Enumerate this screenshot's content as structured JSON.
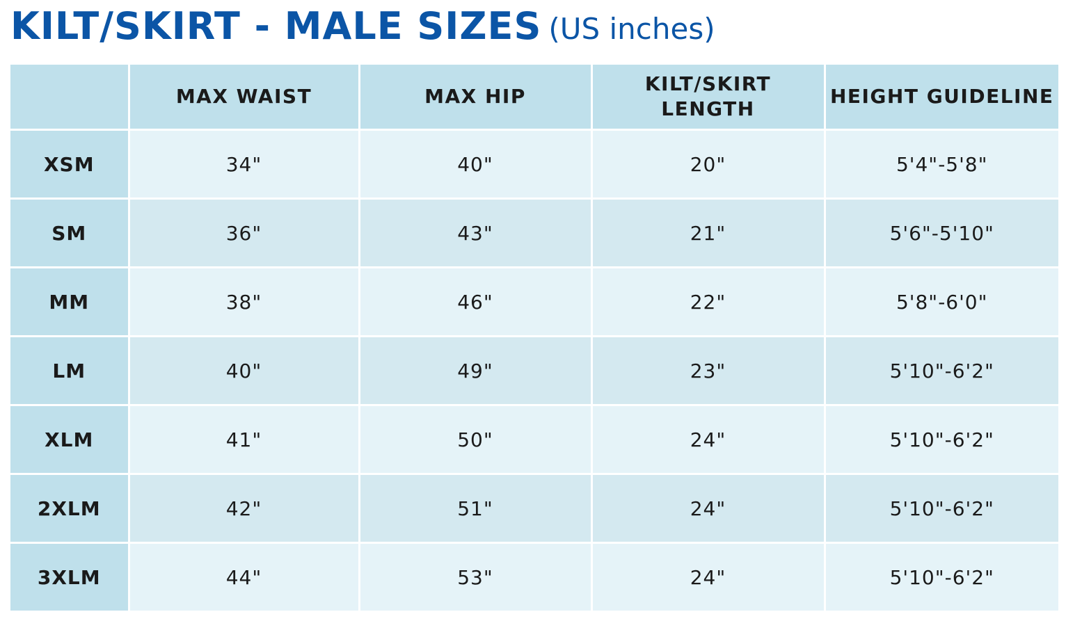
{
  "header": {
    "title": "KILT/SKIRT - MALE SIZES",
    "subtitle": "(US inches)"
  },
  "colors": {
    "title": "#0b55a6",
    "header_cell": "#bfe0eb",
    "row_light": "#e5f3f8",
    "row_dark": "#d4e9f0"
  },
  "table": {
    "columns": [
      "",
      "MAX WAIST",
      "MAX HIP",
      "KILT/SKIRT LENGTH",
      "HEIGHT GUIDELINE"
    ],
    "rows": [
      {
        "size": "XSM",
        "waist": "34\"",
        "hip": "40\"",
        "length": "20\"",
        "height": "5'4\"-5'8\""
      },
      {
        "size": "SM",
        "waist": "36\"",
        "hip": "43\"",
        "length": "21\"",
        "height": "5'6\"-5'10\""
      },
      {
        "size": "MM",
        "waist": "38\"",
        "hip": "46\"",
        "length": "22\"",
        "height": "5'8\"-6'0\""
      },
      {
        "size": "LM",
        "waist": "40\"",
        "hip": "49\"",
        "length": "23\"",
        "height": "5'10\"-6'2\""
      },
      {
        "size": "XLM",
        "waist": "41\"",
        "hip": "50\"",
        "length": "24\"",
        "height": "5'10\"-6'2\""
      },
      {
        "size": "2XLM",
        "waist": "42\"",
        "hip": "51\"",
        "length": "24\"",
        "height": "5'10\"-6'2\""
      },
      {
        "size": "3XLM",
        "waist": "44\"",
        "hip": "53\"",
        "length": "24\"",
        "height": "5'10\"-6'2\""
      }
    ]
  }
}
